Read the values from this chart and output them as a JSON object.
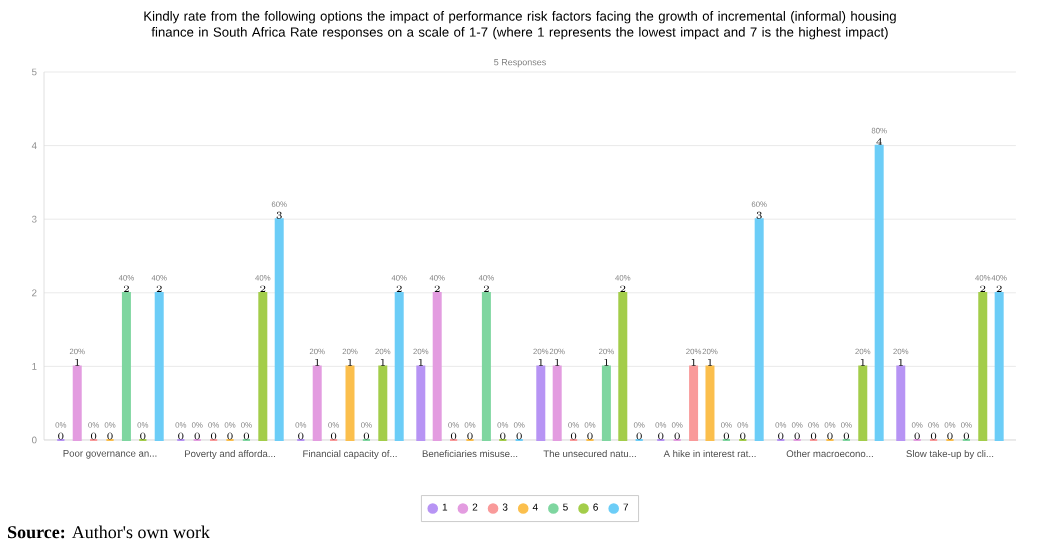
{
  "chart_data": {
    "type": "bar",
    "title": "Kindly rate from the following options the impact of performance risk factors facing the growth of incremental (informal) housing finance in South Africa Rate responses on a scale of 1-7 (where 1 represents the lowest impact and 7 is the highest impact)",
    "subtitle": "5 Responses",
    "categories": [
      "Poor governance an...",
      "Poverty and afforda...",
      "Financial capacity of...",
      "Beneficiaries misuse...",
      "The unsecured natu...",
      "A hike in interest rat...",
      "Other macroecono...",
      "Slow take-up by cli..."
    ],
    "series": [
      {
        "name": "1",
        "color": "#b794f4",
        "values": [
          0,
          0,
          0,
          1,
          1,
          0,
          0,
          1
        ]
      },
      {
        "name": "2",
        "color": "#e39ce0",
        "values": [
          1,
          0,
          1,
          2,
          1,
          0,
          0,
          0
        ]
      },
      {
        "name": "3",
        "color": "#f99a9a",
        "values": [
          0,
          0,
          0,
          0,
          0,
          1,
          0,
          0
        ]
      },
      {
        "name": "4",
        "color": "#fbbf4d",
        "values": [
          0,
          0,
          1,
          0,
          0,
          1,
          0,
          0
        ]
      },
      {
        "name": "5",
        "color": "#7fd6a0",
        "values": [
          2,
          0,
          0,
          2,
          1,
          0,
          0,
          0
        ]
      },
      {
        "name": "6",
        "color": "#a3cd4a",
        "values": [
          0,
          2,
          1,
          0,
          2,
          0,
          1,
          2
        ]
      },
      {
        "name": "7",
        "color": "#6ccdf7",
        "values": [
          2,
          3,
          2,
          0,
          0,
          3,
          4,
          2
        ]
      }
    ],
    "ylim": [
      0,
      5
    ],
    "yticks": [
      0,
      1,
      2,
      3,
      4,
      5
    ],
    "grid": "y",
    "legend": "bottom",
    "data_labels": true,
    "annotations": [
      "**Source:** Author's own work",
      "0%",
      "20%",
      "0%",
      "0%",
      "40%",
      "0%",
      "40%",
      "0%",
      "0%",
      "0%",
      "0%",
      "0%",
      "40%",
      "60%",
      "0%",
      "20%",
      "0%",
      "20%",
      "0%",
      "20%",
      "40%",
      "20%",
      "40%",
      "0%",
      "0%",
      "40%",
      "0%",
      "0%",
      "20%",
      "20%",
      "0%",
      "0%",
      "20%",
      "40%",
      "0%",
      "0%",
      "0%",
      "20%",
      "20%",
      "0%",
      "0%",
      "60%",
      "0%",
      "0%",
      "0%",
      "0%",
      "0%",
      "20%",
      "80%",
      "20%",
      "0%",
      "0%",
      "0%",
      "0%",
      "40%",
      "40%"
    ]
  }
}
